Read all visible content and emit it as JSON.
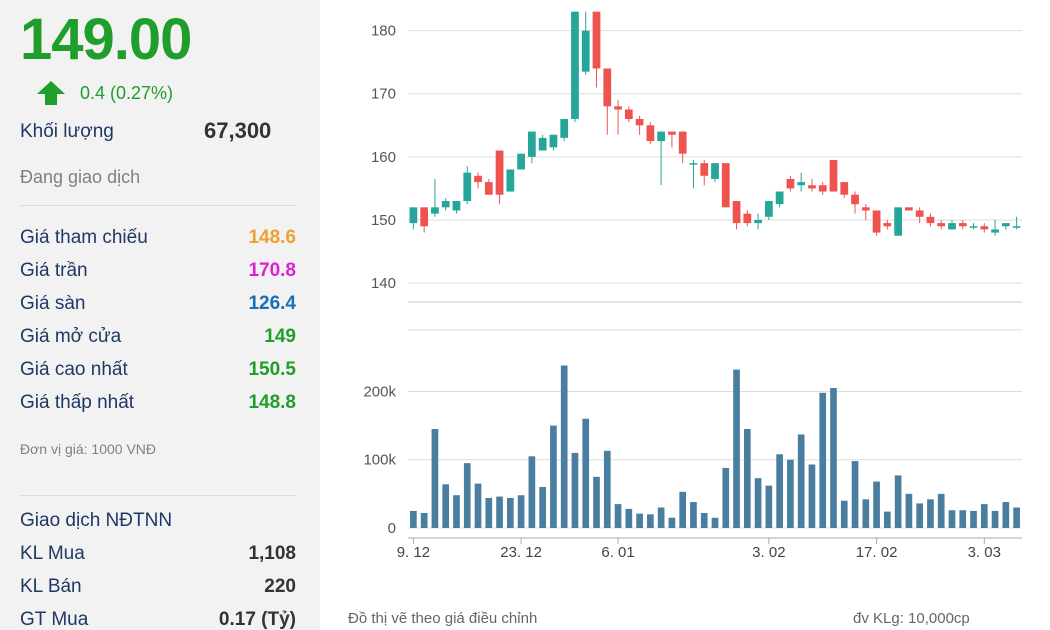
{
  "quote": {
    "price": "149.00",
    "change": "0.4 (0.27%)",
    "volume_label": "Khối lượng",
    "volume_value": "67,300",
    "status": "Đang giao dịch"
  },
  "stats": [
    {
      "label": "Giá tham chiếu",
      "value": "148.6",
      "color": "#f0a030"
    },
    {
      "label": "Giá trần",
      "value": "170.8",
      "color": "#e020d0"
    },
    {
      "label": "Giá sàn",
      "value": "126.4",
      "color": "#1a6eb5"
    },
    {
      "label": "Giá mở cửa",
      "value": "149",
      "color": "#1f9e2b"
    },
    {
      "label": "Giá cao nhất",
      "value": "150.5",
      "color": "#1f9e2b"
    },
    {
      "label": "Giá thấp nhất",
      "value": "148.8",
      "color": "#1f9e2b"
    }
  ],
  "unit_note": "Đơn vị giá: 1000 VNĐ",
  "foreign": {
    "title": "Giao dịch NĐTNN",
    "rows": [
      {
        "label": "KL Mua",
        "value": "1,108"
      },
      {
        "label": "KL Bán",
        "value": "220"
      },
      {
        "label": "GT Mua",
        "value": "0.17 (Tỷ)"
      }
    ]
  },
  "colors": {
    "up": "#26a69a",
    "down": "#ef5350",
    "volume": "#4a7ea0",
    "price_up_text": "#1f9e2b",
    "grid": "#dddddd"
  },
  "footnotes": {
    "left": "Đồ thị vẽ theo giá điều chỉnh",
    "right": "đv KLg: 10,000cp"
  },
  "chart_data": {
    "type": "candlestick",
    "price_axis": {
      "ticks": [
        "140",
        "150",
        "160",
        "170",
        "180"
      ],
      "ylim": [
        137,
        182
      ]
    },
    "volume_axis": {
      "ticks": [
        "0",
        "100k",
        "200k"
      ],
      "ylim": [
        0,
        290000
      ]
    },
    "x_labels": [
      {
        "text": "9. 12",
        "index": 0
      },
      {
        "text": "23. 12",
        "index": 10
      },
      {
        "text": "6. 01",
        "index": 19
      },
      {
        "text": "3. 02",
        "index": 33
      },
      {
        "text": "17. 02",
        "index": 43
      },
      {
        "text": "3. 03",
        "index": 53
      }
    ],
    "candles": [
      {
        "o": 149.5,
        "h": 152.0,
        "l": 148.5,
        "c": 152.0
      },
      {
        "o": 152.0,
        "h": 152.0,
        "l": 148.0,
        "c": 149.0
      },
      {
        "o": 151.0,
        "h": 156.5,
        "l": 150.5,
        "c": 152.0
      },
      {
        "o": 152.0,
        "h": 153.5,
        "l": 151.5,
        "c": 153.0
      },
      {
        "o": 151.5,
        "h": 153.0,
        "l": 151.0,
        "c": 153.0
      },
      {
        "o": 153.0,
        "h": 158.5,
        "l": 152.5,
        "c": 157.5
      },
      {
        "o": 157.0,
        "h": 157.5,
        "l": 155.0,
        "c": 156.0
      },
      {
        "o": 156.0,
        "h": 156.5,
        "l": 154.0,
        "c": 154.0
      },
      {
        "o": 161.0,
        "h": 161.0,
        "l": 152.5,
        "c": 154.0
      },
      {
        "o": 154.5,
        "h": 158.0,
        "l": 154.5,
        "c": 158.0
      },
      {
        "o": 158.0,
        "h": 160.5,
        "l": 158.0,
        "c": 160.5
      },
      {
        "o": 160.0,
        "h": 164.0,
        "l": 159.0,
        "c": 164.0
      },
      {
        "o": 161.0,
        "h": 163.5,
        "l": 161.0,
        "c": 163.0
      },
      {
        "o": 161.5,
        "h": 163.5,
        "l": 161.0,
        "c": 163.5
      },
      {
        "o": 163.0,
        "h": 166.0,
        "l": 162.5,
        "c": 166.0
      },
      {
        "o": 166.0,
        "h": 183.0,
        "l": 165.5,
        "c": 183.0
      },
      {
        "o": 173.5,
        "h": 183.0,
        "l": 173.0,
        "c": 180.0
      },
      {
        "o": 183.0,
        "h": 183.0,
        "l": 171.0,
        "c": 174.0
      },
      {
        "o": 174.0,
        "h": 174.0,
        "l": 163.5,
        "c": 168.0
      },
      {
        "o": 168.0,
        "h": 169.0,
        "l": 163.5,
        "c": 167.5
      },
      {
        "o": 167.5,
        "h": 168.0,
        "l": 165.5,
        "c": 166.0
      },
      {
        "o": 166.0,
        "h": 166.5,
        "l": 163.5,
        "c": 165.0
      },
      {
        "o": 165.0,
        "h": 165.5,
        "l": 162.0,
        "c": 162.5
      },
      {
        "o": 162.5,
        "h": 164.0,
        "l": 155.5,
        "c": 164.0
      },
      {
        "o": 164.0,
        "h": 164.0,
        "l": 161.5,
        "c": 163.5
      },
      {
        "o": 164.0,
        "h": 164.0,
        "l": 159.0,
        "c": 160.5
      },
      {
        "o": 159.0,
        "h": 159.5,
        "l": 155.0,
        "c": 159.0
      },
      {
        "o": 159.0,
        "h": 159.5,
        "l": 155.5,
        "c": 157.0
      },
      {
        "o": 156.5,
        "h": 159.0,
        "l": 156.0,
        "c": 159.0
      },
      {
        "o": 159.0,
        "h": 159.0,
        "l": 152.0,
        "c": 152.0
      },
      {
        "o": 153.0,
        "h": 153.0,
        "l": 148.5,
        "c": 149.5
      },
      {
        "o": 151.0,
        "h": 151.5,
        "l": 149.0,
        "c": 149.5
      },
      {
        "o": 149.5,
        "h": 151.0,
        "l": 148.5,
        "c": 150.0
      },
      {
        "o": 150.5,
        "h": 153.0,
        "l": 150.0,
        "c": 153.0
      },
      {
        "o": 152.5,
        "h": 154.5,
        "l": 152.0,
        "c": 154.5
      },
      {
        "o": 156.5,
        "h": 157.0,
        "l": 154.5,
        "c": 155.0
      },
      {
        "o": 155.5,
        "h": 157.5,
        "l": 154.5,
        "c": 156.0
      },
      {
        "o": 155.5,
        "h": 156.5,
        "l": 154.5,
        "c": 155.0
      },
      {
        "o": 155.5,
        "h": 156.0,
        "l": 154.0,
        "c": 154.5
      },
      {
        "o": 159.5,
        "h": 159.5,
        "l": 154.5,
        "c": 154.5
      },
      {
        "o": 156.0,
        "h": 156.0,
        "l": 153.5,
        "c": 154.0
      },
      {
        "o": 154.0,
        "h": 154.5,
        "l": 151.0,
        "c": 152.5
      },
      {
        "o": 152.0,
        "h": 152.5,
        "l": 150.0,
        "c": 151.5
      },
      {
        "o": 151.5,
        "h": 151.5,
        "l": 147.5,
        "c": 148.0
      },
      {
        "o": 149.5,
        "h": 150.0,
        "l": 148.5,
        "c": 149.0
      },
      {
        "o": 147.5,
        "h": 152.0,
        "l": 147.5,
        "c": 152.0
      },
      {
        "o": 152.0,
        "h": 152.0,
        "l": 151.5,
        "c": 151.5
      },
      {
        "o": 151.5,
        "h": 152.0,
        "l": 149.5,
        "c": 150.5
      },
      {
        "o": 150.5,
        "h": 151.0,
        "l": 149.0,
        "c": 149.5
      },
      {
        "o": 149.5,
        "h": 150.0,
        "l": 148.5,
        "c": 149.0
      },
      {
        "o": 148.5,
        "h": 150.0,
        "l": 148.5,
        "c": 149.5
      },
      {
        "o": 149.5,
        "h": 150.0,
        "l": 148.5,
        "c": 149.0
      },
      {
        "o": 149.0,
        "h": 149.5,
        "l": 148.5,
        "c": 149.0
      },
      {
        "o": 149.0,
        "h": 149.5,
        "l": 148.0,
        "c": 148.5
      },
      {
        "o": 148.0,
        "h": 150.0,
        "l": 147.5,
        "c": 148.5
      },
      {
        "o": 149.0,
        "h": 149.5,
        "l": 148.5,
        "c": 149.5
      },
      {
        "o": 149.0,
        "h": 150.5,
        "l": 148.5,
        "c": 149.0
      }
    ],
    "volumes": [
      25000,
      22000,
      145000,
      64000,
      48000,
      95000,
      65000,
      44000,
      46000,
      44000,
      48000,
      105000,
      60000,
      150000,
      238000,
      110000,
      160000,
      75000,
      113000,
      35000,
      28000,
      21000,
      20000,
      30000,
      15000,
      53000,
      38000,
      22000,
      15000,
      88000,
      232000,
      145000,
      73000,
      62000,
      108000,
      100000,
      137000,
      93000,
      198000,
      205000,
      40000,
      98000,
      42000,
      68000,
      24000,
      77000,
      50000,
      36000,
      42000,
      50000,
      26000,
      26000,
      25000,
      35000,
      25000,
      38000,
      30000
    ]
  }
}
